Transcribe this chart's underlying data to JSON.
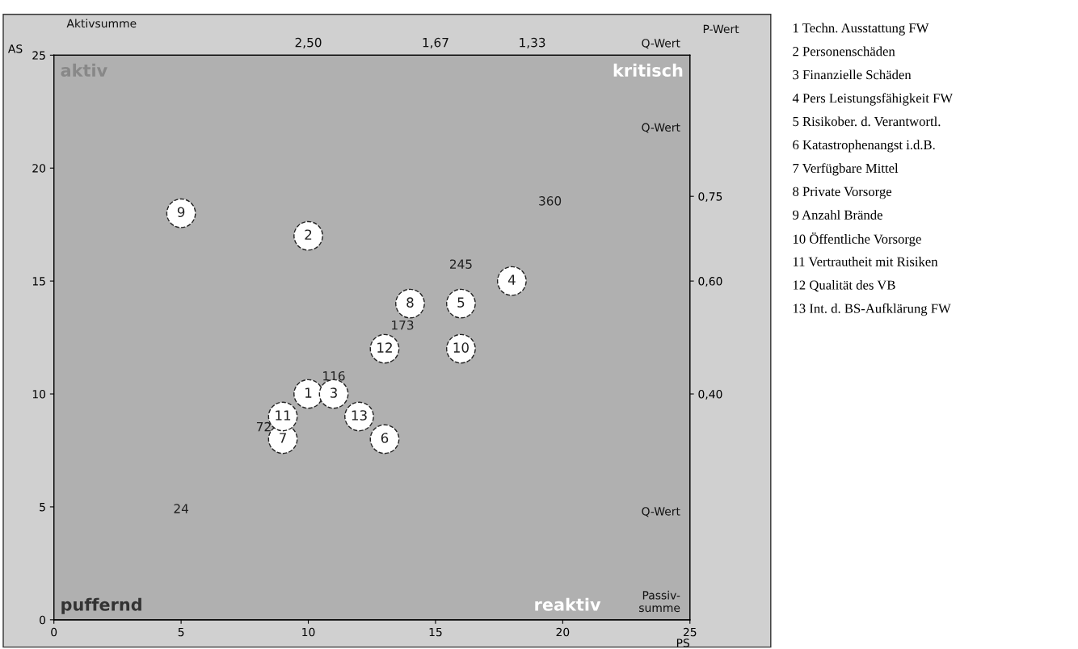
{
  "chart_data": {
    "type": "scatter",
    "x": [
      10,
      10,
      11,
      18,
      16,
      13,
      9,
      14,
      5,
      16,
      9,
      13,
      12
    ],
    "values": [
      10,
      17,
      10,
      15,
      14,
      8,
      8,
      14,
      18,
      12,
      9,
      12,
      9
    ],
    "color": "#ffffff",
    "marker": "circle",
    "xlim": [
      0,
      25
    ],
    "ylim": [
      0,
      25
    ],
    "xticks": [
      0,
      5,
      10,
      15,
      20,
      25
    ],
    "yticks": [
      0,
      5,
      10,
      15,
      20,
      25
    ],
    "y2lim": [
      0,
      1
    ],
    "y2ticks": [
      {
        "value": 0.4,
        "label": "0,40"
      },
      {
        "value": 0.6,
        "label": "0,60"
      },
      {
        "value": 0.75,
        "label": "0,75"
      }
    ],
    "xlabel": "PS",
    "ylabel": "AS",
    "annotations": [
      "aktiv",
      "kritisch",
      "puffernd",
      "reaktiv",
      "Aktivsumme",
      "P-Wert",
      "Passiv-\nsumme",
      "Q-Wert",
      "Q-Wert",
      "24",
      "72",
      "116",
      "173",
      "245",
      "360",
      "2,50",
      "1,67",
      "1,33",
      "Q-Wert",
      {
        "text": "1",
        "x": 10,
        "y": 10
      },
      {
        "text": "2",
        "x": 10,
        "y": 17
      },
      {
        "text": "3",
        "x": 11,
        "y": 10
      },
      {
        "text": "4",
        "x": 18,
        "y": 15
      },
      {
        "text": "5",
        "x": 16,
        "y": 14
      },
      {
        "text": "6",
        "x": 13,
        "y": 8
      },
      {
        "text": "7",
        "x": 9,
        "y": 8
      },
      {
        "text": "8",
        "x": 14,
        "y": 14
      },
      {
        "text": "9",
        "x": 5,
        "y": 18
      },
      {
        "text": "10",
        "x": 16,
        "y": 12
      },
      {
        "text": "11",
        "x": 9,
        "y": 9
      },
      {
        "text": "12",
        "x": 13,
        "y": 12
      },
      {
        "text": "13",
        "x": 12,
        "y": 9
      },
      "1 Techn. Ausstattung FW",
      "2 Personenschäden",
      "3 Finanzielle Schäden",
      "4 Pers Leistungsfähigkeit FW",
      "5 Risikober. d. Verantwortl.",
      "6 Katastrophenangst i.d.B.",
      "7 Verfügbare Mittel",
      "8 Private Vorsorge",
      "9 Anzahl Brände",
      "10 Öffentliche Vorsorge",
      "11 Vertrautheit mit Risiken",
      "12 Qualität des VB",
      "13 Int. d. BS-Aufklärung FW"
    ]
  }
}
